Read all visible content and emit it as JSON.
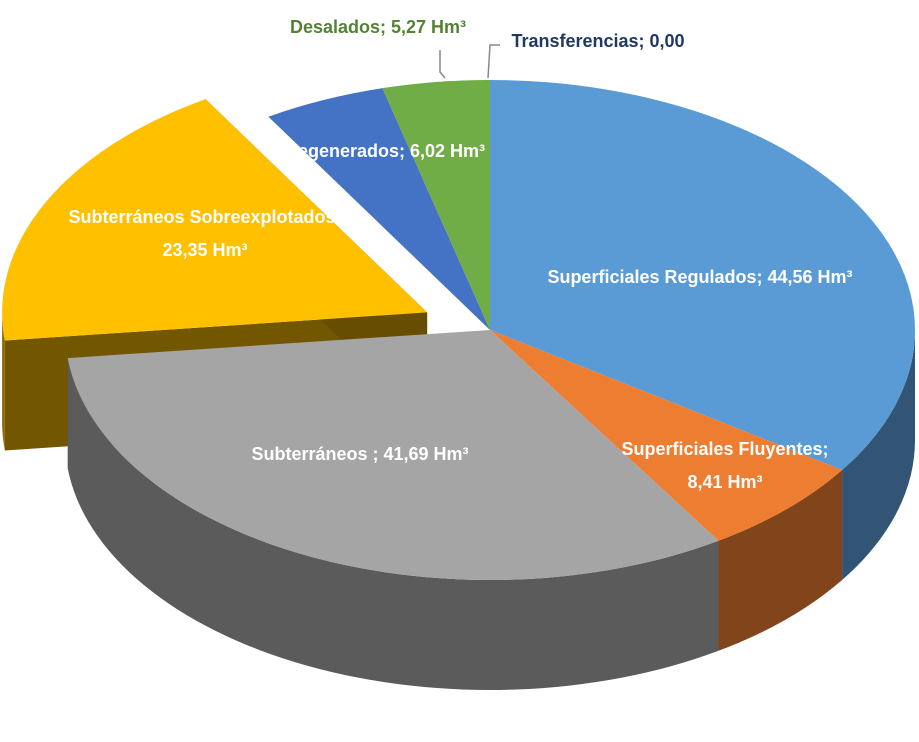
{
  "chart_data": {
    "type": "pie",
    "values": [
      44.56,
      8.41,
      41.69,
      23.35,
      6.02,
      5.27,
      0.0
    ],
    "value_labels": [
      "Superficiales Regulados; 44,56 Hm³",
      "Superficiales Fluyentes;\n8,41 Hm³",
      "Subterráneos ; 41,69 Hm³",
      "Subterráneos Sobreexplotados;\n23,35 Hm³",
      "Regenerados; 6,02 Hm³",
      "Desalados; 5,27 Hm³",
      "Transferencias; 0,00"
    ],
    "colors": [
      "#5b9bd5",
      "#ed7d31",
      "#a5a5a5",
      "#ffc000",
      "#4472c4",
      "#70ad47",
      "#264478"
    ],
    "exploded": [
      3
    ]
  }
}
